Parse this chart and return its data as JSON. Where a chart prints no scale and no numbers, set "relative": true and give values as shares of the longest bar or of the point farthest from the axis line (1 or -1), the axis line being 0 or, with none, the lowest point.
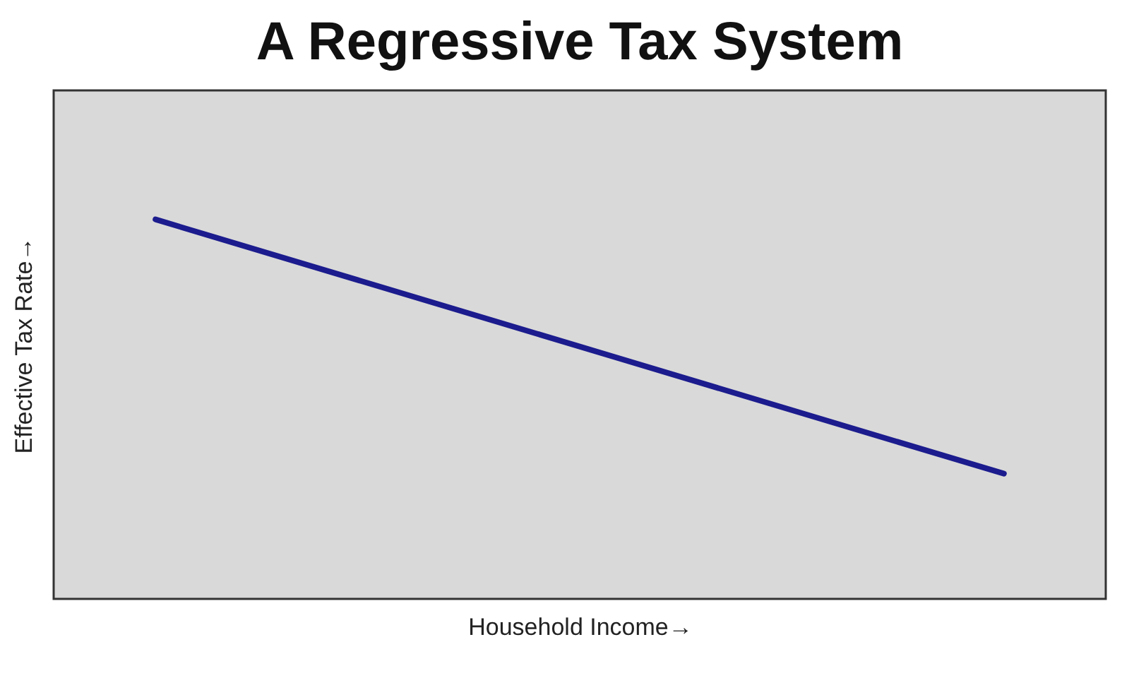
{
  "chart_data": {
    "type": "line",
    "title": "A Regressive Tax System",
    "xlabel": "Household Income→",
    "ylabel": "Effective Tax Rate→",
    "categories": [
      null,
      null
    ],
    "series": [
      {
        "color": "#1c1c8e",
        "values": [
          1,
          0.33
        ]
      }
    ],
    "relative": true,
    "tick_labels": false
  }
}
